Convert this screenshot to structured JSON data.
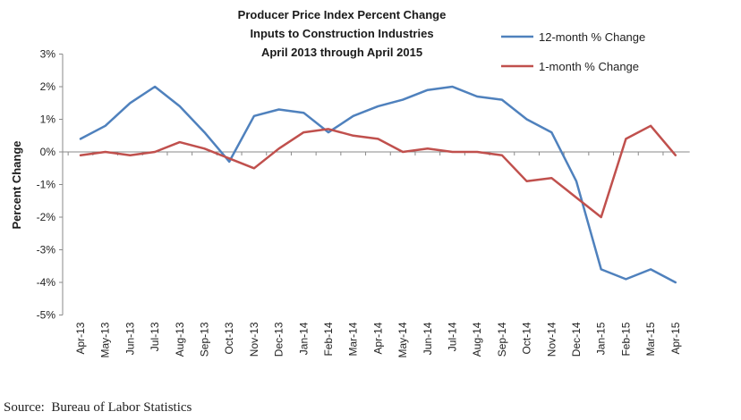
{
  "chart_data": {
    "type": "line",
    "title": [
      "Producer Price Index Percent Change",
      "Inputs to Construction Industries",
      "April 2013 through April 2015"
    ],
    "xlabel": "",
    "ylabel": "Percent Change",
    "ylim": [
      -5,
      3
    ],
    "yticks": [
      3,
      2,
      1,
      0,
      -1,
      -2,
      -3,
      -4,
      -5
    ],
    "ytick_labels": [
      "3%",
      "2%",
      "1%",
      "0%",
      "-1%",
      "-2%",
      "-3%",
      "-4%",
      "-5%"
    ],
    "categories": [
      "Apr-13",
      "May-13",
      "Jun-13",
      "Jul-13",
      "Aug-13",
      "Sep-13",
      "Oct-13",
      "Nov-13",
      "Dec-13",
      "Jan-14",
      "Feb-14",
      "Mar-14",
      "Apr-14",
      "May-14",
      "Jun-14",
      "Jul-14",
      "Aug-14",
      "Sep-14",
      "Oct-14",
      "Nov-14",
      "Dec-14",
      "Jan-15",
      "Feb-15",
      "Mar-15",
      "Apr-15"
    ],
    "grid": false,
    "legend_position": "top-right",
    "series": [
      {
        "name": "12-month % Change",
        "color": "#4f81bd",
        "values": [
          0.4,
          0.8,
          1.5,
          2.0,
          1.4,
          0.6,
          -0.3,
          1.1,
          1.3,
          1.2,
          0.6,
          1.1,
          1.4,
          1.6,
          1.9,
          2.0,
          1.7,
          1.6,
          1.0,
          0.6,
          -0.9,
          -3.6,
          -3.9,
          -3.6,
          -4.0
        ]
      },
      {
        "name": "1-month % Change",
        "color": "#c0504d",
        "values": [
          -0.1,
          0.0,
          -0.1,
          0.0,
          0.3,
          0.1,
          -0.2,
          -0.5,
          0.1,
          0.6,
          0.7,
          0.5,
          0.4,
          0.0,
          0.1,
          0.0,
          0.0,
          -0.1,
          -0.9,
          -0.8,
          -1.4,
          -2.0,
          0.4,
          0.8,
          -0.1
        ]
      }
    ]
  },
  "source": "Source:  Bureau of Labor Statistics"
}
